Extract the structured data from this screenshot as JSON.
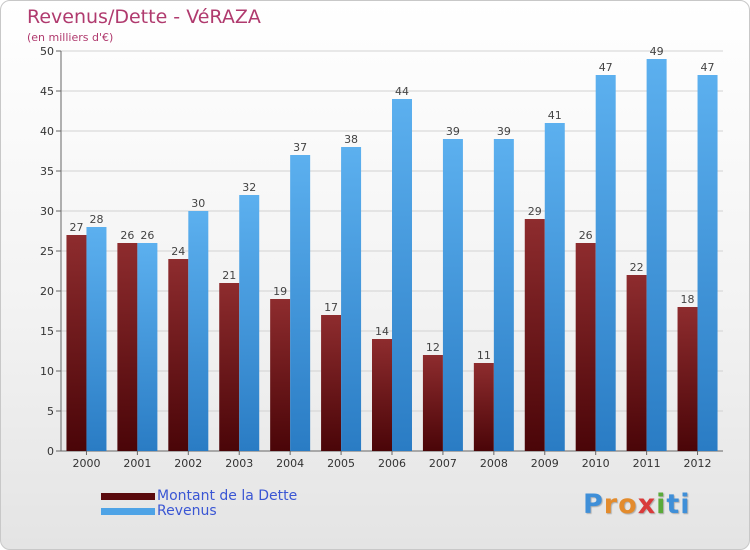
{
  "title": "Revenus/Dette - VéRAZA",
  "subtitle": "(en milliers d'€)",
  "chart_data": {
    "type": "bar",
    "categories": [
      "2000",
      "2001",
      "2002",
      "2003",
      "2004",
      "2005",
      "2006",
      "2007",
      "2008",
      "2009",
      "2010",
      "2011",
      "2012"
    ],
    "series": [
      {
        "name": "Montant de la Dette",
        "color": "#7a1c20",
        "values": [
          27,
          26,
          24,
          21,
          19,
          17,
          14,
          12,
          11,
          29,
          26,
          22,
          18
        ]
      },
      {
        "name": "Revenus",
        "color": "#4ea3e6",
        "values": [
          28,
          26,
          30,
          32,
          37,
          38,
          44,
          39,
          39,
          41,
          47,
          49,
          47
        ]
      }
    ],
    "ylim": [
      0,
      50
    ],
    "yticks": [
      0,
      5,
      10,
      15,
      20,
      25,
      30,
      35,
      40,
      45,
      50
    ],
    "grid": true,
    "legend": "bottom-left"
  },
  "logo": {
    "letters": [
      "P",
      "r",
      "o",
      "x",
      "i",
      "t",
      "i"
    ],
    "colors": [
      "#3f8fd8",
      "#e38b2c",
      "#e38b2c",
      "#d93a3a",
      "#5aaa3a",
      "#3f8fd8",
      "#3f8fd8"
    ]
  }
}
